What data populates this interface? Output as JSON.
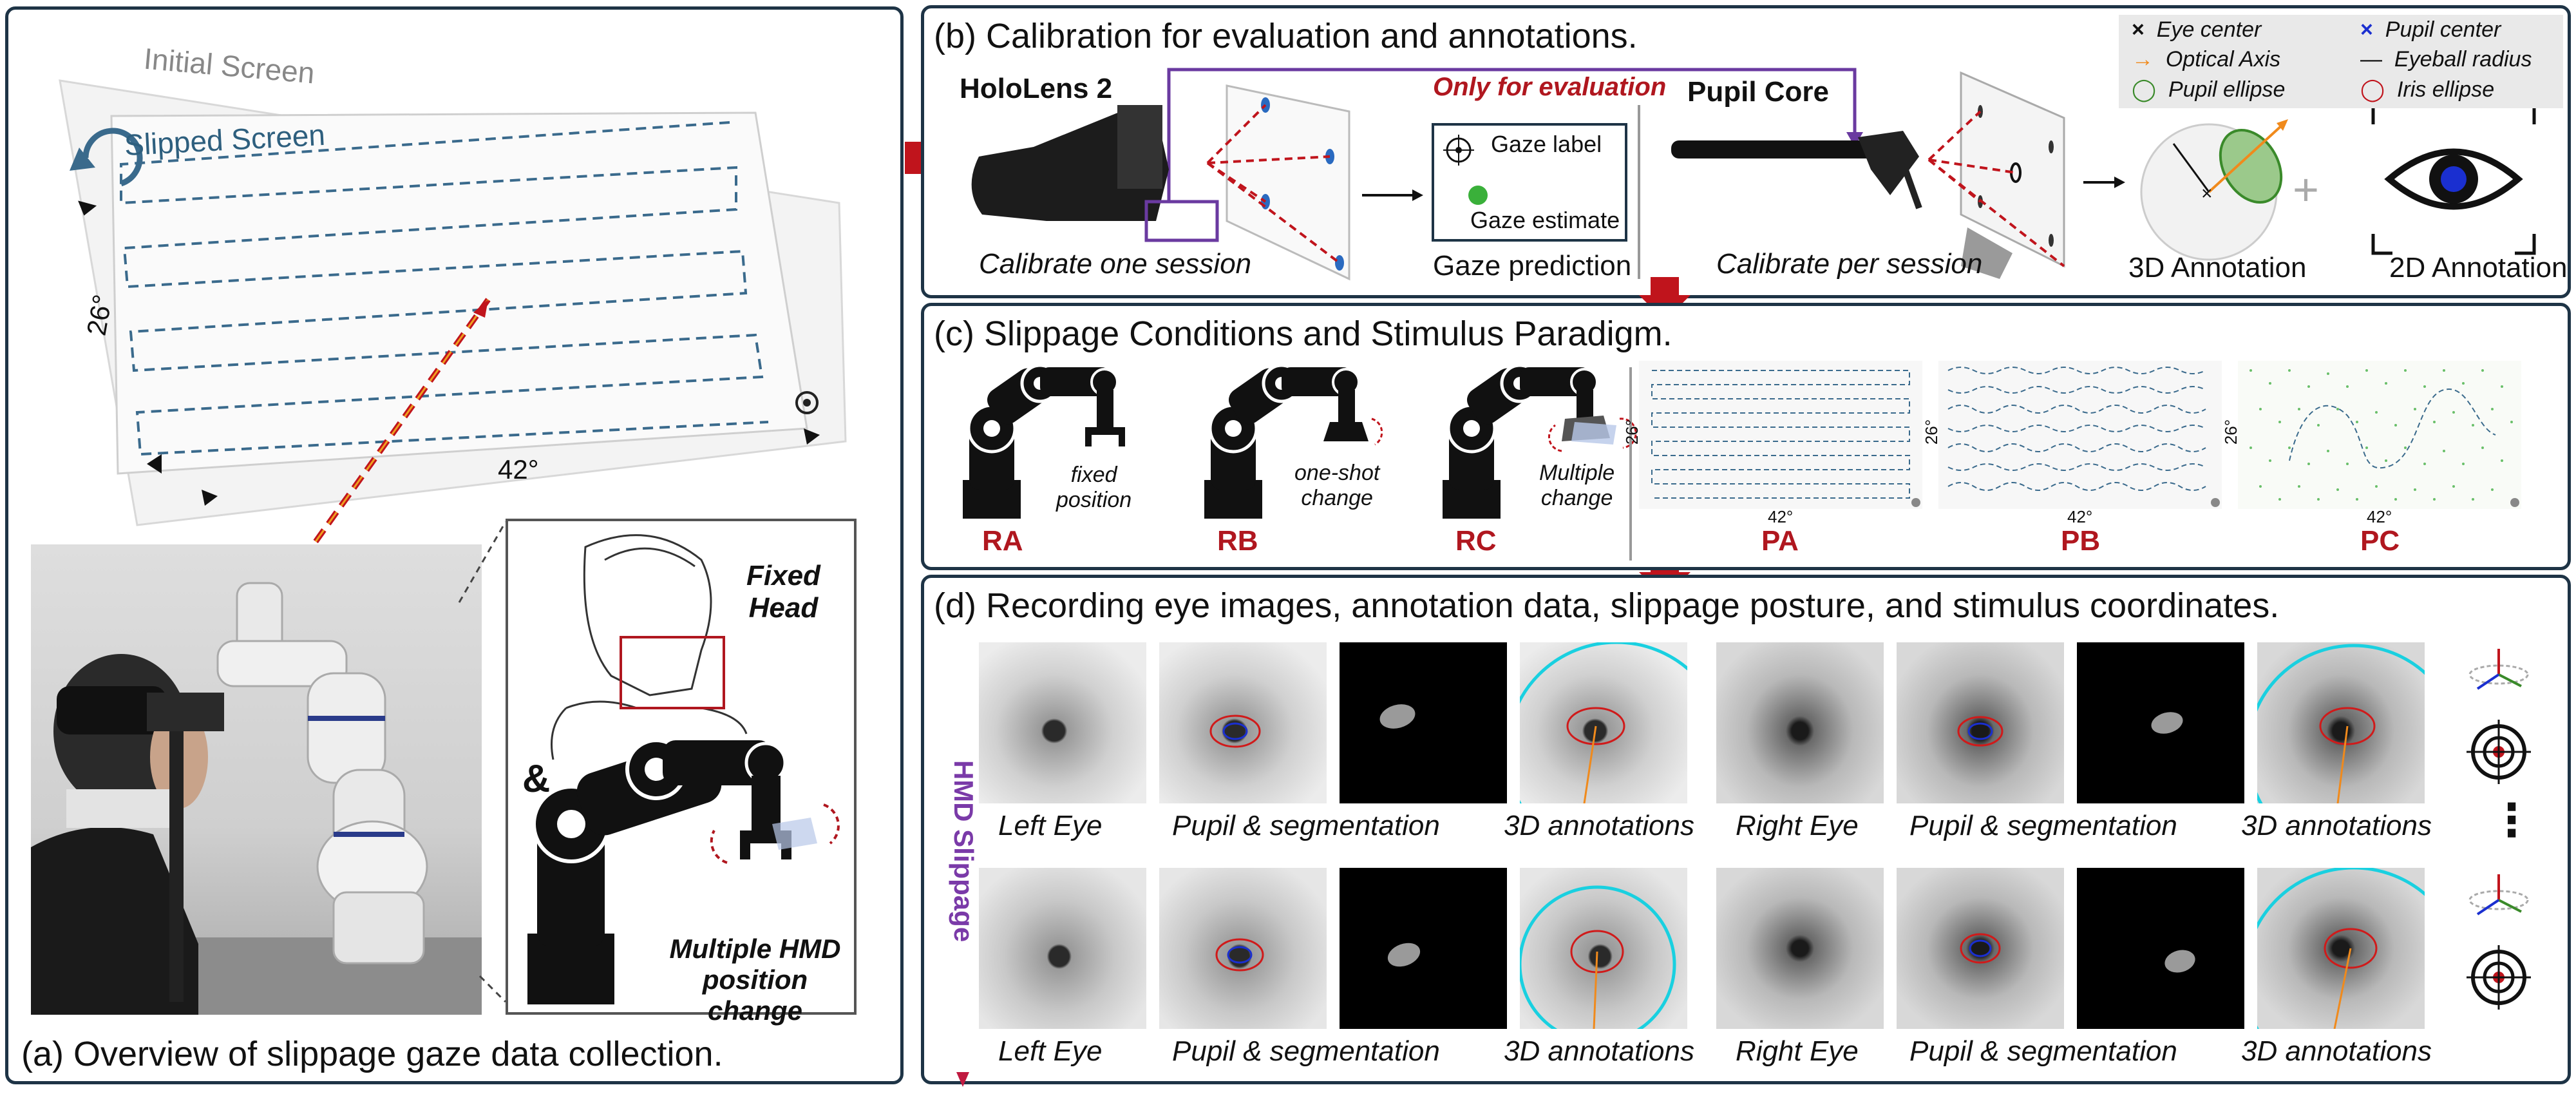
{
  "panel_a": {
    "caption": "(a) Overview of slippage gaze data collection.",
    "initial_screen": "Initial Screen",
    "slipped_screen": "Slipped Screen",
    "angle_vertical": "26°",
    "angle_horizontal": "42°",
    "fixed_head": "Fixed\nHead",
    "ampersand": "&",
    "multiple_change": "Multiple HMD\nposition change"
  },
  "panel_b": {
    "title": "(b) Calibration for evaluation and annotations.",
    "hololens": "HoloLens 2",
    "only_eval": "Only for evaluation",
    "pupil_core": "Pupil Core",
    "calibrate_one": "Calibrate one session",
    "calibrate_per": "Calibrate per session",
    "gaze_label": "Gaze label",
    "gaze_estimate": "Gaze estimate",
    "gaze_prediction": "Gaze prediction",
    "annotation_3d": "3D Annotation",
    "annotation_2d": "2D Annotation",
    "plus": "+",
    "legend": [
      {
        "symbol": "×",
        "label": "Eye center",
        "color": "#111111"
      },
      {
        "symbol": "×",
        "label": "Pupil center",
        "color": "#1a2fd0"
      },
      {
        "symbol": "→",
        "label": "Optical Axis",
        "color": "#f08a1c"
      },
      {
        "symbol": "—",
        "label": "Eyeball radius",
        "color": "#111111"
      },
      {
        "symbol": "◯",
        "label": "Pupil ellipse",
        "color": "#3a8a2a"
      },
      {
        "symbol": "◯",
        "label": "Iris ellipse",
        "color": "#c0141c"
      }
    ]
  },
  "panel_c": {
    "title": "(c) Slippage Conditions and Stimulus Paradigm.",
    "conditions": [
      {
        "code": "RA",
        "desc": "fixed\nposition"
      },
      {
        "code": "RB",
        "desc": "one-shot\nchange"
      },
      {
        "code": "RC",
        "desc": "Multiple\nchange"
      }
    ],
    "paradigms": [
      {
        "code": "PA",
        "v": "26°",
        "h": "42°"
      },
      {
        "code": "PB",
        "v": "26°",
        "h": "42°"
      },
      {
        "code": "PC",
        "v": "26°",
        "h": "42°"
      }
    ]
  },
  "panel_d": {
    "title": "(d) Recording eye images, annotation data, slippage posture, and stimulus coordinates.",
    "side_label": "HMD Slippage",
    "captions": [
      "Left Eye",
      "Pupil & segmentation",
      "3D annotations",
      "Right Eye",
      "Pupil & segmentation",
      "3D annotations"
    ],
    "ellipsis": "⋮"
  },
  "colors": {
    "border": "#1e3446",
    "accent_red": "#b0171f",
    "purple": "#6a3aa0",
    "dash_blue": "#3a6a8c",
    "cyan": "#19d0e0"
  }
}
